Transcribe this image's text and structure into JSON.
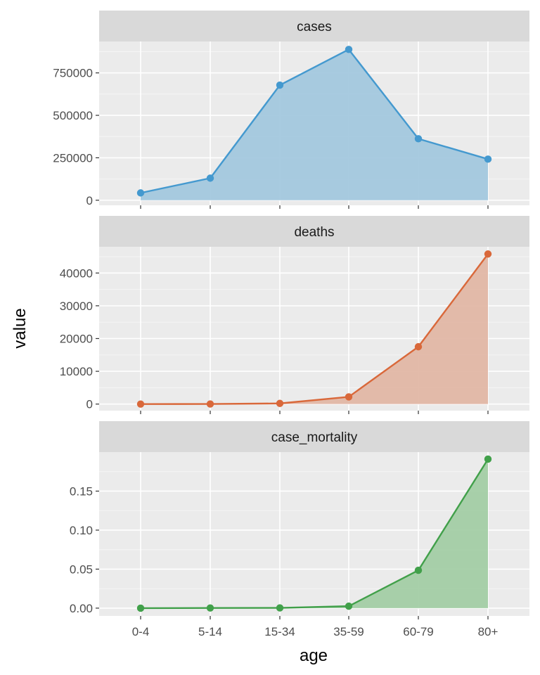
{
  "chart_data": {
    "type": "area",
    "xlabel": "age",
    "ylabel": "value",
    "categories": [
      "0-4",
      "5-14",
      "15-34",
      "35-59",
      "60-79",
      "80+"
    ],
    "facets": [
      {
        "title": "cases",
        "color": "#4499CF",
        "fill": "#A3C8DE",
        "values": [
          43000,
          130000,
          678000,
          888000,
          362000,
          242000
        ],
        "ylim": [
          -30000,
          935000
        ],
        "yticks": [
          0,
          250000,
          500000,
          750000
        ],
        "ytick_labels": [
          "0",
          "250000",
          "500000",
          "750000"
        ]
      },
      {
        "title": "deaths",
        "color": "#D9683A",
        "fill": "#E1B7A5",
        "values": [
          0,
          20,
          200,
          2200,
          17500,
          45800
        ],
        "ylim": [
          -2000,
          48000
        ],
        "yticks": [
          0,
          10000,
          20000,
          30000,
          40000
        ],
        "ytick_labels": [
          "0",
          "10000",
          "20000",
          "30000",
          "40000"
        ]
      },
      {
        "title": "case_mortality",
        "color": "#41A04A",
        "fill": "#A3CDA5",
        "values": [
          0.0,
          0.0002,
          0.0003,
          0.0025,
          0.0485,
          0.191
        ],
        "ylim": [
          -0.01,
          0.2
        ],
        "yticks": [
          0,
          0.05,
          0.1,
          0.15
        ],
        "ytick_labels": [
          "0.00",
          "0.05",
          "0.10",
          "0.15"
        ]
      }
    ],
    "grid": true,
    "legend": "none"
  }
}
